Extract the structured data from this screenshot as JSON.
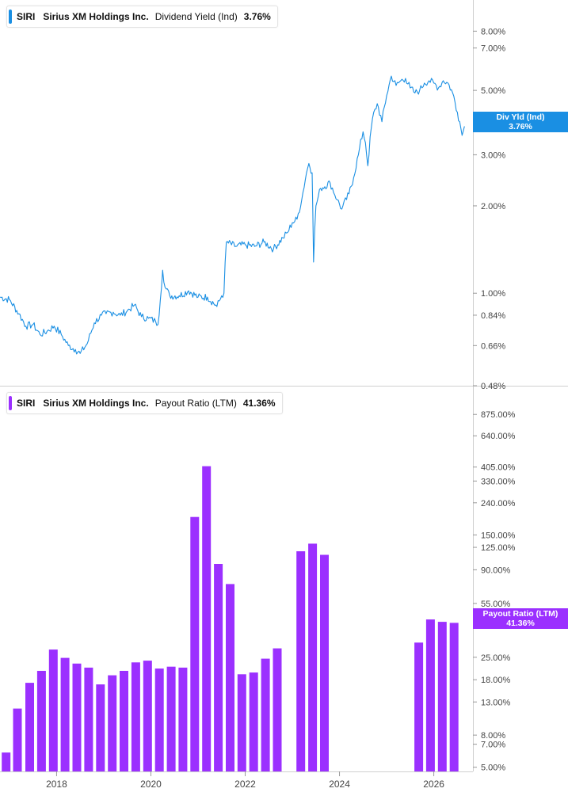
{
  "colors": {
    "yield": "#1a8fe3",
    "payout": "#9b30ff",
    "axis": "#cfcfcf",
    "text": "#444444"
  },
  "top_legend": {
    "ticker": "SIRI",
    "company": "Sirius XM Holdings Inc.",
    "metric": "Dividend Yield (Ind)",
    "value": "3.76%"
  },
  "bottom_legend": {
    "ticker": "SIRI",
    "company": "Sirius XM Holdings Inc.",
    "metric": "Payout Ratio (LTM)",
    "value": "41.36%"
  },
  "top_tag": {
    "label": "Div Yld (Ind)",
    "value": "3.76%"
  },
  "bottom_tag": {
    "label": "Payout Ratio (LTM)",
    "value": "41.36%"
  },
  "chart_data": [
    {
      "type": "line",
      "name": "Dividend Yield (Ind)",
      "scale": "log",
      "ylim": [
        0.48,
        9.5
      ],
      "y_ticks": [
        "8.00%",
        "7.00%",
        "5.00%",
        "3.00%",
        "2.00%",
        "1.00%",
        "0.84%",
        "0.66%",
        "0.48%"
      ],
      "y_tick_values": [
        8,
        7,
        5,
        3,
        2,
        1,
        0.84,
        0.66,
        0.48
      ],
      "x": [
        2016.8,
        2017.0,
        2017.2,
        2017.35,
        2017.5,
        2017.65,
        2017.8,
        2017.95,
        2018.1,
        2018.25,
        2018.4,
        2018.5,
        2018.65,
        2018.8,
        2018.95,
        2019.05,
        2019.2,
        2019.35,
        2019.5,
        2019.65,
        2019.8,
        2019.95,
        2020.1,
        2020.15,
        2020.2,
        2020.25,
        2020.3,
        2020.4,
        2020.6,
        2020.8,
        2021.0,
        2021.2,
        2021.4,
        2021.5,
        2021.55,
        2021.6,
        2021.8,
        2022.0,
        2022.2,
        2022.4,
        2022.6,
        2022.8,
        2022.9,
        2023.0,
        2023.1,
        2023.2,
        2023.3,
        2023.35,
        2023.42,
        2023.45,
        2023.5,
        2023.6,
        2023.8,
        2023.95,
        2024.05,
        2024.2,
        2024.3,
        2024.4,
        2024.5,
        2024.55,
        2024.6,
        2024.7,
        2024.8,
        2024.9,
        2025.0,
        2025.1,
        2025.2,
        2025.3,
        2025.4,
        2025.5,
        2025.6,
        2025.7,
        2025.8,
        2025.9,
        2026.0,
        2026.1,
        2026.2,
        2026.3,
        2026.4,
        2026.5,
        2026.55,
        2026.6,
        2026.65
      ],
      "values": [
        0.97,
        0.95,
        0.85,
        0.77,
        0.78,
        0.72,
        0.74,
        0.77,
        0.72,
        0.66,
        0.64,
        0.62,
        0.67,
        0.79,
        0.84,
        0.85,
        0.86,
        0.84,
        0.87,
        0.91,
        0.83,
        0.82,
        0.8,
        0.78,
        0.95,
        1.2,
        1.05,
        0.98,
        0.98,
        1.02,
        0.97,
        0.97,
        0.9,
        0.98,
        1.0,
        1.5,
        1.45,
        1.47,
        1.45,
        1.5,
        1.42,
        1.55,
        1.62,
        1.75,
        1.8,
        2.1,
        2.6,
        2.8,
        2.6,
        1.28,
        2.0,
        2.3,
        2.4,
        2.1,
        1.95,
        2.2,
        2.5,
        3.0,
        3.6,
        3.3,
        2.75,
        4.0,
        4.5,
        3.9,
        4.8,
        5.6,
        5.2,
        5.4,
        5.5,
        5.1,
        4.9,
        5.0,
        5.3,
        5.4,
        5.3,
        5.1,
        5.4,
        5.3,
        4.9,
        4.2,
        3.9,
        3.5,
        3.76
      ]
    },
    {
      "type": "bar",
      "name": "Payout Ratio (LTM)",
      "scale": "log",
      "ylim": [
        4.7,
        1200
      ],
      "y_ticks": [
        "875.00%",
        "640.00%",
        "405.00%",
        "330.00%",
        "240.00%",
        "150.00%",
        "125.00%",
        "90.00%",
        "55.00%",
        "25.00%",
        "18.00%",
        "13.00%",
        "8.00%",
        "7.00%",
        "5.00%"
      ],
      "y_tick_values": [
        875,
        640,
        405,
        330,
        240,
        150,
        125,
        90,
        55,
        25,
        18,
        13,
        8,
        7,
        5
      ],
      "x": [
        2016.93,
        2017.17,
        2017.43,
        2017.68,
        2017.93,
        2018.18,
        2018.43,
        2018.68,
        2018.93,
        2019.18,
        2019.43,
        2019.68,
        2019.93,
        2020.18,
        2020.43,
        2020.68,
        2020.93,
        2021.18,
        2021.43,
        2021.68,
        2021.93,
        2022.18,
        2022.43,
        2022.68,
        2023.18,
        2023.43,
        2023.68,
        2025.68,
        2025.93,
        2026.18,
        2026.43
      ],
      "values": [
        6.2,
        11.8,
        17.2,
        20.5,
        28.0,
        24.8,
        22.8,
        21.5,
        16.8,
        19.2,
        20.5,
        23.2,
        23.8,
        21.2,
        21.8,
        21.5,
        195,
        410,
        98,
        73,
        19.5,
        20.0,
        24.5,
        28.5,
        118,
        132,
        112,
        31.0,
        43.5,
        42.0,
        41.36
      ]
    }
  ],
  "x_axis": {
    "ticks": [
      "2018",
      "2020",
      "2022",
      "2024",
      "2026"
    ],
    "tick_values": [
      2018,
      2020,
      2022,
      2024,
      2026
    ],
    "range": [
      2016.8,
      2026.83
    ]
  }
}
